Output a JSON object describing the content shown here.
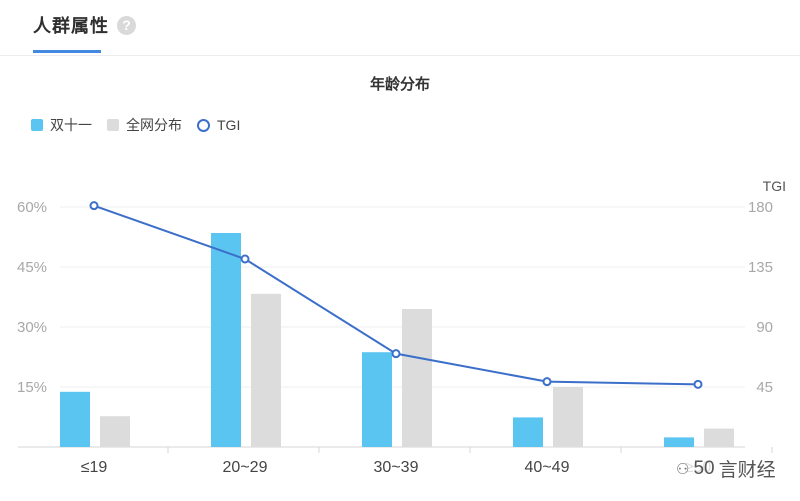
{
  "tab": {
    "label": "人群属性",
    "help_icon": "help-icon",
    "help_glyph": "?"
  },
  "watermark": {
    "text": "言财经",
    "digits": "50",
    "icon": "wechat-icon"
  },
  "chart_data": {
    "type": "bar",
    "title": "年龄分布",
    "categories": [
      "≤19",
      "20~29",
      "30~39",
      "40~49",
      "≥50"
    ],
    "series": [
      {
        "name": "双十一",
        "type": "bar",
        "axis": "left",
        "color": "#5bc5f2",
        "values": [
          13.8,
          53.5,
          23.7,
          7.4,
          2.4
        ]
      },
      {
        "name": "全网分布",
        "type": "bar",
        "axis": "left",
        "color": "#dcdcdc",
        "values": [
          7.7,
          38.3,
          34.5,
          15.0,
          4.6
        ]
      },
      {
        "name": "TGI",
        "type": "line",
        "axis": "right",
        "color": "#3b6fc9",
        "values": [
          181,
          141,
          70,
          49,
          47
        ]
      }
    ],
    "y_left": {
      "ticks": [
        "15%",
        "30%",
        "45%",
        "60%"
      ],
      "tick_values": [
        15,
        30,
        45,
        60
      ],
      "range": [
        0,
        60
      ]
    },
    "y_right": {
      "label": "TGI",
      "ticks": [
        "45",
        "90",
        "135",
        "180"
      ],
      "tick_values": [
        45,
        90,
        135,
        180
      ],
      "range": [
        0,
        180
      ]
    },
    "grid": true,
    "legend_position": "top-left"
  }
}
